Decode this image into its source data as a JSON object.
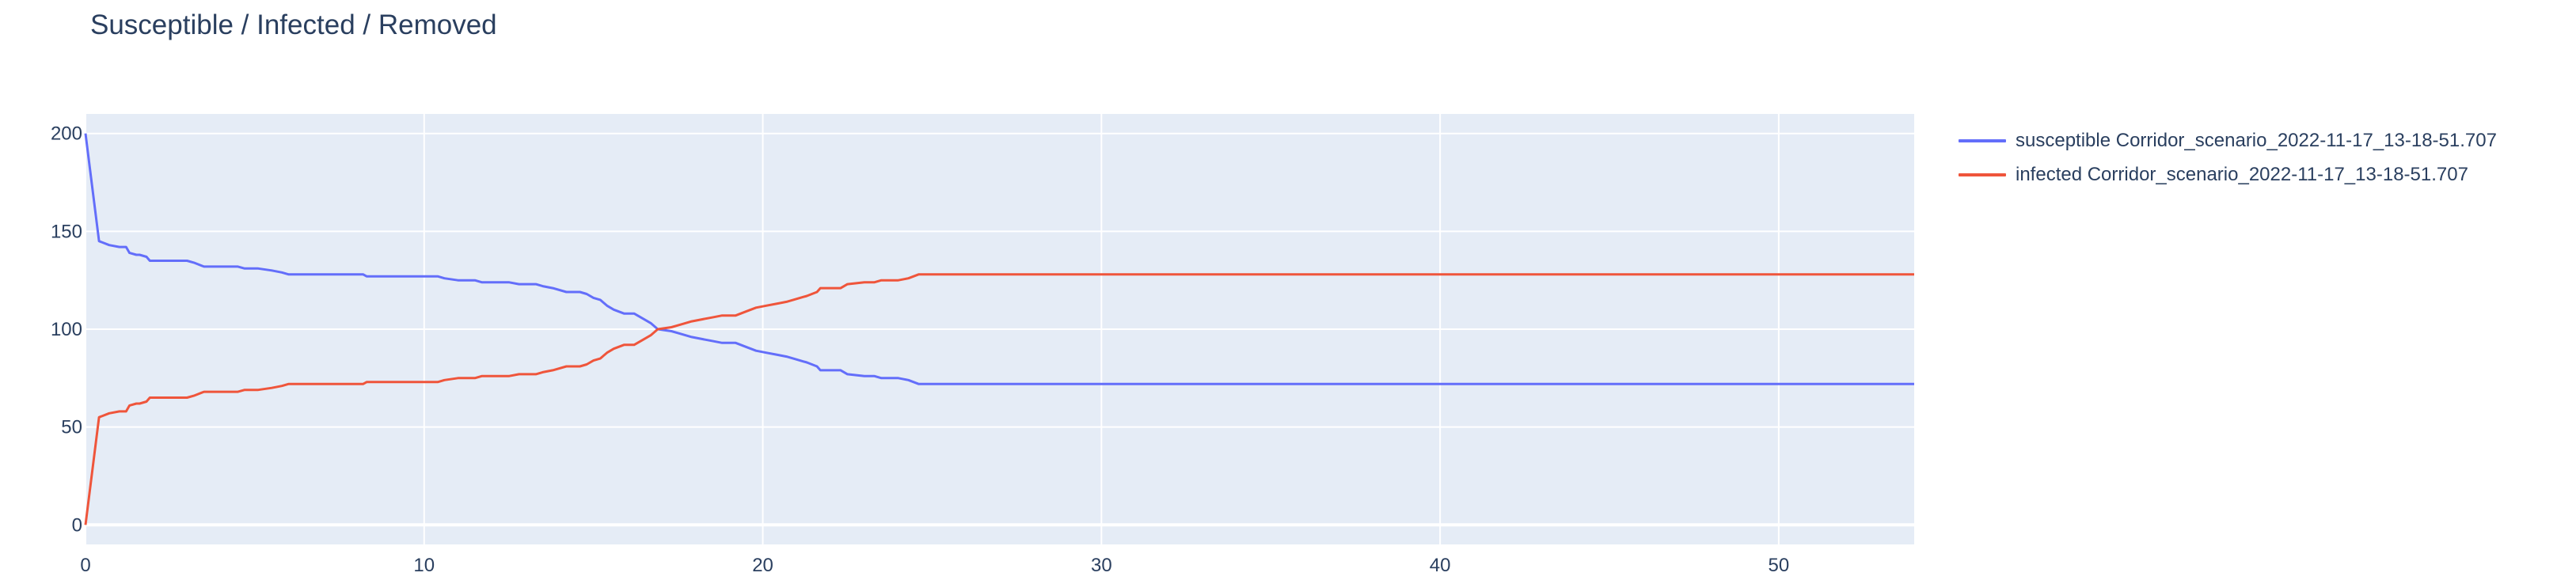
{
  "chart_data": {
    "type": "line",
    "title": "Susceptible / Infected / Removed",
    "xlabel": "",
    "ylabel": "",
    "xlim": [
      0,
      54
    ],
    "ylim": [
      -10,
      210
    ],
    "x_ticks": [
      0,
      10,
      20,
      30,
      40,
      50
    ],
    "y_ticks": [
      0,
      50,
      100,
      150,
      200
    ],
    "grid": true,
    "legend_position": "top-right outside",
    "background": "#e5ecf6",
    "series": [
      {
        "name": "susceptible Corridor_scenario_2022-11-17_13-18-51.707",
        "color": "#636efa",
        "points": [
          [
            0,
            200
          ],
          [
            0.4,
            145
          ],
          [
            0.7,
            143
          ],
          [
            1.0,
            142
          ],
          [
            1.2,
            142
          ],
          [
            1.3,
            139
          ],
          [
            1.5,
            138
          ],
          [
            1.6,
            138
          ],
          [
            1.8,
            137
          ],
          [
            1.9,
            135
          ],
          [
            2.5,
            135
          ],
          [
            3.0,
            135
          ],
          [
            3.2,
            134
          ],
          [
            3.5,
            132
          ],
          [
            4.0,
            132
          ],
          [
            4.5,
            132
          ],
          [
            4.7,
            131
          ],
          [
            5.1,
            131
          ],
          [
            5.5,
            130
          ],
          [
            5.8,
            129
          ],
          [
            6.0,
            128
          ],
          [
            6.5,
            128
          ],
          [
            7.5,
            128
          ],
          [
            8.2,
            128
          ],
          [
            8.3,
            127
          ],
          [
            9.0,
            127
          ],
          [
            10.0,
            127
          ],
          [
            10.4,
            127
          ],
          [
            10.6,
            126
          ],
          [
            11.0,
            125
          ],
          [
            11.5,
            125
          ],
          [
            11.7,
            124
          ],
          [
            12.5,
            124
          ],
          [
            12.8,
            123
          ],
          [
            13.3,
            123
          ],
          [
            13.5,
            122
          ],
          [
            13.8,
            121
          ],
          [
            14.2,
            119
          ],
          [
            14.6,
            119
          ],
          [
            14.8,
            118
          ],
          [
            15.0,
            116
          ],
          [
            15.2,
            115
          ],
          [
            15.4,
            112
          ],
          [
            15.6,
            110
          ],
          [
            15.9,
            108
          ],
          [
            16.2,
            108
          ],
          [
            16.5,
            105
          ],
          [
            16.7,
            103
          ],
          [
            16.9,
            100
          ],
          [
            17.3,
            99
          ],
          [
            17.5,
            98
          ],
          [
            17.7,
            97
          ],
          [
            17.9,
            96
          ],
          [
            18.2,
            95
          ],
          [
            18.5,
            94
          ],
          [
            18.8,
            93
          ],
          [
            19.2,
            93
          ],
          [
            19.5,
            91
          ],
          [
            19.8,
            89
          ],
          [
            20.1,
            88
          ],
          [
            20.4,
            87
          ],
          [
            20.7,
            86
          ],
          [
            20.9,
            85
          ],
          [
            21.1,
            84
          ],
          [
            21.3,
            83
          ],
          [
            21.6,
            81
          ],
          [
            21.7,
            79
          ],
          [
            22.3,
            79
          ],
          [
            22.5,
            77
          ],
          [
            23.0,
            76
          ],
          [
            23.3,
            76
          ],
          [
            23.5,
            75
          ],
          [
            24.0,
            75
          ],
          [
            24.3,
            74
          ],
          [
            24.6,
            72
          ],
          [
            30,
            72
          ],
          [
            40,
            72
          ],
          [
            54,
            72
          ]
        ]
      },
      {
        "name": "infected Corridor_scenario_2022-11-17_13-18-51.707",
        "color": "#ef553b",
        "points": [
          [
            0,
            0
          ],
          [
            0.4,
            55
          ],
          [
            0.7,
            57
          ],
          [
            1.0,
            58
          ],
          [
            1.2,
            58
          ],
          [
            1.3,
            61
          ],
          [
            1.5,
            62
          ],
          [
            1.6,
            62
          ],
          [
            1.8,
            63
          ],
          [
            1.9,
            65
          ],
          [
            2.5,
            65
          ],
          [
            3.0,
            65
          ],
          [
            3.2,
            66
          ],
          [
            3.5,
            68
          ],
          [
            4.0,
            68
          ],
          [
            4.5,
            68
          ],
          [
            4.7,
            69
          ],
          [
            5.1,
            69
          ],
          [
            5.5,
            70
          ],
          [
            5.8,
            71
          ],
          [
            6.0,
            72
          ],
          [
            6.5,
            72
          ],
          [
            7.5,
            72
          ],
          [
            8.2,
            72
          ],
          [
            8.3,
            73
          ],
          [
            9.0,
            73
          ],
          [
            10.0,
            73
          ],
          [
            10.4,
            73
          ],
          [
            10.6,
            74
          ],
          [
            11.0,
            75
          ],
          [
            11.5,
            75
          ],
          [
            11.7,
            76
          ],
          [
            12.5,
            76
          ],
          [
            12.8,
            77
          ],
          [
            13.3,
            77
          ],
          [
            13.5,
            78
          ],
          [
            13.8,
            79
          ],
          [
            14.2,
            81
          ],
          [
            14.6,
            81
          ],
          [
            14.8,
            82
          ],
          [
            15.0,
            84
          ],
          [
            15.2,
            85
          ],
          [
            15.4,
            88
          ],
          [
            15.6,
            90
          ],
          [
            15.9,
            92
          ],
          [
            16.2,
            92
          ],
          [
            16.5,
            95
          ],
          [
            16.7,
            97
          ],
          [
            16.9,
            100
          ],
          [
            17.3,
            101
          ],
          [
            17.5,
            102
          ],
          [
            17.7,
            103
          ],
          [
            17.9,
            104
          ],
          [
            18.2,
            105
          ],
          [
            18.5,
            106
          ],
          [
            18.8,
            107
          ],
          [
            19.2,
            107
          ],
          [
            19.5,
            109
          ],
          [
            19.8,
            111
          ],
          [
            20.1,
            112
          ],
          [
            20.4,
            113
          ],
          [
            20.7,
            114
          ],
          [
            20.9,
            115
          ],
          [
            21.1,
            116
          ],
          [
            21.3,
            117
          ],
          [
            21.6,
            119
          ],
          [
            21.7,
            121
          ],
          [
            22.3,
            121
          ],
          [
            22.5,
            123
          ],
          [
            23.0,
            124
          ],
          [
            23.3,
            124
          ],
          [
            23.5,
            125
          ],
          [
            24.0,
            125
          ],
          [
            24.3,
            126
          ],
          [
            24.6,
            128
          ],
          [
            30,
            128
          ],
          [
            40,
            128
          ],
          [
            54,
            128
          ]
        ]
      }
    ]
  }
}
